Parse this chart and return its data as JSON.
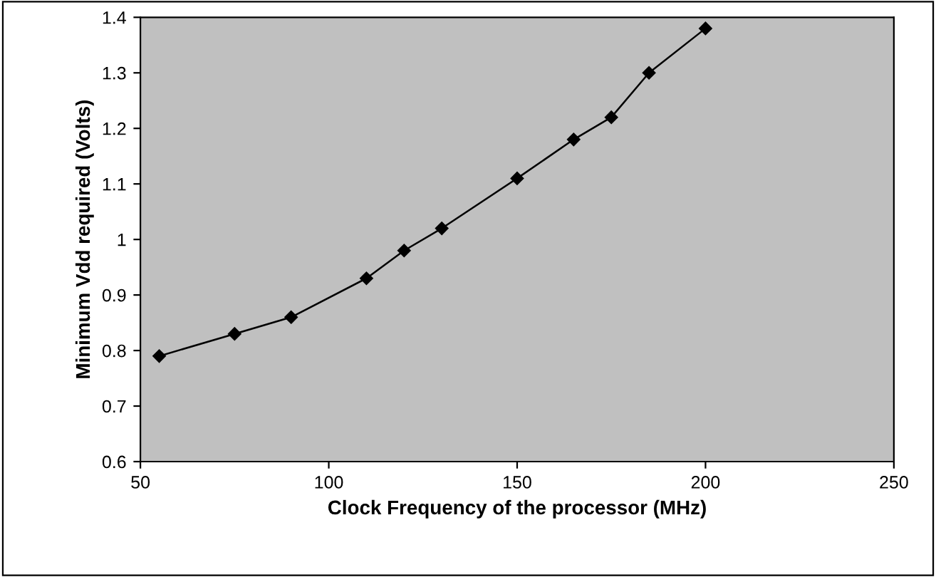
{
  "chart_data": {
    "type": "line",
    "xlabel": "Clock Frequency of the processor (MHz)",
    "ylabel": "Minimum Vdd required (Volts)",
    "x": [
      55,
      75,
      90,
      110,
      120,
      130,
      150,
      165,
      175,
      185,
      200
    ],
    "series": [
      {
        "color": "#000000",
        "values": [
          0.79,
          0.83,
          0.86,
          0.93,
          0.98,
          1.02,
          1.11,
          1.18,
          1.22,
          1.3,
          1.38
        ]
      }
    ],
    "xlim": [
      50,
      250
    ],
    "xticks": [
      50,
      100,
      150,
      200,
      250
    ],
    "ylim": [
      0.6,
      1.4
    ],
    "yticks": [
      0.6,
      0.7,
      0.8,
      0.9,
      1,
      1.1,
      1.2,
      1.3,
      1.4
    ],
    "grid": false,
    "marker": "diamond",
    "line_style": "solid"
  }
}
